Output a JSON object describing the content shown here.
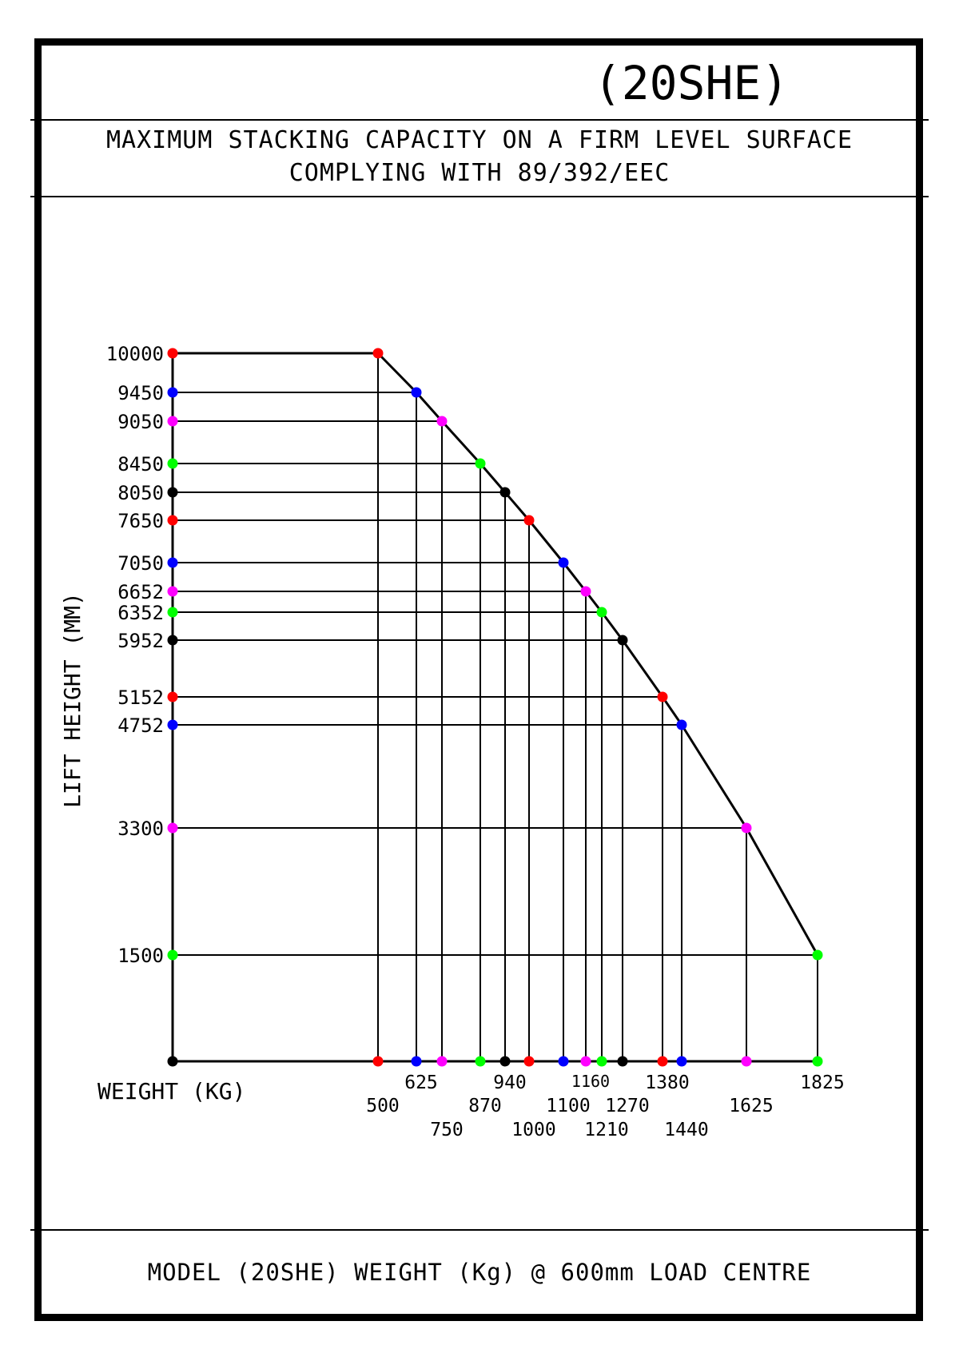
{
  "header": {
    "model_title": "(20SHE)",
    "subtitle_line1": "MAXIMUM STACKING CAPACITY ON A FIRM LEVEL SURFACE",
    "subtitle_line2": "COMPLYING WITH 89/392/EEC"
  },
  "footer": {
    "text": "MODEL (20SHE)  WEIGHT (Kg) @ 600mm LOAD CENTRE"
  },
  "colors": {
    "red": "#ff0000",
    "blue": "#0000ff",
    "magenta": "#ff00ff",
    "green": "#00ff00",
    "black": "#000000"
  },
  "chart_data": {
    "type": "line",
    "ylabel": "LIFT HEIGHT (MM)",
    "xlabel": "WEIGHT (KG)",
    "grid": false,
    "series": [
      {
        "points": [
          {
            "weight": 500,
            "height": 10000,
            "color": "red",
            "label": "500",
            "label_row": 1
          },
          {
            "weight": 625,
            "height": 9450,
            "color": "blue",
            "label": "625",
            "label_row": 0
          },
          {
            "weight": 750,
            "height": 9050,
            "color": "magenta",
            "label": "750",
            "label_row": 2
          },
          {
            "weight": 870,
            "height": 8450,
            "color": "green",
            "label": "870",
            "label_row": 1
          },
          {
            "weight": 940,
            "height": 8050,
            "color": "black",
            "label": "940",
            "label_row": 0
          },
          {
            "weight": 1000,
            "height": 7650,
            "color": "red",
            "label": "1000",
            "label_row": 2
          },
          {
            "weight": 1100,
            "height": 7050,
            "color": "blue",
            "label": "1100",
            "label_row": 1
          },
          {
            "weight": 1160,
            "height": 6652,
            "color": "magenta",
            "label": "1160",
            "label_row": 0
          },
          {
            "weight": 1210,
            "height": 6352,
            "color": "green",
            "label": "1210",
            "label_row": 2
          },
          {
            "weight": 1270,
            "height": 5952,
            "color": "black",
            "label": "1270",
            "label_row": 1
          },
          {
            "weight": 1380,
            "height": 5152,
            "color": "red",
            "label": "1380",
            "label_row": 0
          },
          {
            "weight": 1440,
            "height": 4752,
            "color": "blue",
            "label": "1440",
            "label_row": 2
          },
          {
            "weight": 1625,
            "height": 3300,
            "color": "magenta",
            "label": "1625",
            "label_row": 1
          },
          {
            "weight": 1825,
            "height": 1500,
            "color": "green",
            "label": "1825",
            "label_row": 0
          }
        ]
      }
    ],
    "y_ticks": [
      "10000",
      "9450",
      "9050",
      "8450",
      "8050",
      "7650",
      "7050",
      "6652",
      "6352",
      "5952",
      "5152",
      "4752",
      "3300",
      "1500"
    ]
  }
}
